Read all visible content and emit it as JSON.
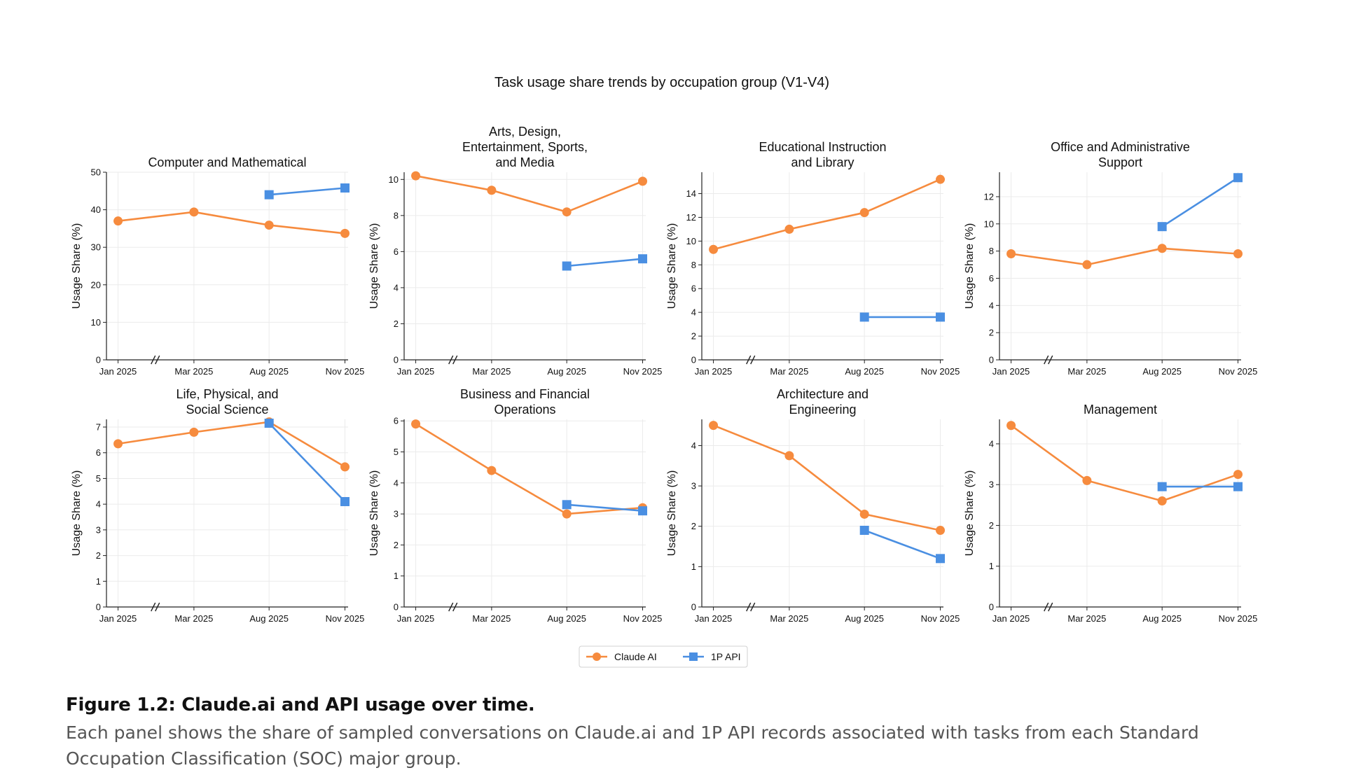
{
  "figure": {
    "suptitle": "Task usage share trends by occupation group (V1-V4)"
  },
  "legend": {
    "location": "bottom-center",
    "entries": [
      {
        "name": "Claude AI",
        "color": "#F68B3E",
        "marker": "circle"
      },
      {
        "name": "1P API",
        "color": "#4A8FE2",
        "marker": "square"
      }
    ]
  },
  "caption": {
    "title": "Figure 1.2: Claude.ai and API usage over time.",
    "body": "Each panel shows the share of sampled conversations on Claude.ai and 1P API records associated with tasks from each Standard Occupation Classification (SOC) major group."
  },
  "chart_data": [
    {
      "type": "line",
      "title": "Computer and Mathematical",
      "ylabel": "Usage Share (%)",
      "categories": [
        "Jan 2025",
        "Mar 2025",
        "Aug 2025",
        "Nov 2025"
      ],
      "axis_break": "between Mar 2025 and Aug 2025",
      "ylim": [
        0,
        50
      ],
      "yticks": [
        0,
        10,
        20,
        30,
        40,
        50
      ],
      "grid": true,
      "series": [
        {
          "name": "Claude AI",
          "values": [
            37.0,
            39.4,
            35.9,
            33.7
          ]
        },
        {
          "name": "1P API",
          "values": [
            null,
            null,
            44.0,
            45.8
          ]
        }
      ]
    },
    {
      "type": "line",
      "title": "Arts, Design,\nEntertainment, Sports,\nand Media",
      "ylabel": "Usage Share (%)",
      "categories": [
        "Jan 2025",
        "Mar 2025",
        "Aug 2025",
        "Nov 2025"
      ],
      "axis_break": "between Mar 2025 and Aug 2025",
      "ylim": [
        0,
        10.4
      ],
      "yticks": [
        0,
        2,
        4,
        6,
        8,
        10
      ],
      "grid": true,
      "series": [
        {
          "name": "Claude AI",
          "values": [
            10.2,
            9.4,
            8.2,
            9.9
          ]
        },
        {
          "name": "1P API",
          "values": [
            null,
            null,
            5.2,
            5.6
          ]
        }
      ]
    },
    {
      "type": "line",
      "title": "Educational Instruction\nand Library",
      "ylabel": "Usage Share (%)",
      "categories": [
        "Jan 2025",
        "Mar 2025",
        "Aug 2025",
        "Nov 2025"
      ],
      "axis_break": "between Mar 2025 and Aug 2025",
      "ylim": [
        0,
        15.8
      ],
      "yticks": [
        0,
        2,
        4,
        6,
        8,
        10,
        12,
        14
      ],
      "grid": true,
      "series": [
        {
          "name": "Claude AI",
          "values": [
            9.3,
            11.0,
            12.4,
            15.2
          ]
        },
        {
          "name": "1P API",
          "values": [
            null,
            null,
            3.6,
            3.6
          ]
        }
      ]
    },
    {
      "type": "line",
      "title": "Office and Administrative\nSupport",
      "ylabel": "Usage Share (%)",
      "categories": [
        "Jan 2025",
        "Mar 2025",
        "Aug 2025",
        "Nov 2025"
      ],
      "axis_break": "between Mar 2025 and Aug 2025",
      "ylim": [
        0,
        13.8
      ],
      "yticks": [
        0,
        2,
        4,
        6,
        8,
        10,
        12
      ],
      "grid": true,
      "series": [
        {
          "name": "Claude AI",
          "values": [
            7.8,
            7.0,
            8.2,
            7.8
          ]
        },
        {
          "name": "1P API",
          "values": [
            null,
            null,
            9.8,
            13.4
          ]
        }
      ]
    },
    {
      "type": "line",
      "title": "Life, Physical, and\nSocial Science",
      "ylabel": "Usage Share (%)",
      "categories": [
        "Jan 2025",
        "Mar 2025",
        "Aug 2025",
        "Nov 2025"
      ],
      "axis_break": "between Mar 2025 and Aug 2025",
      "ylim": [
        0,
        7.3
      ],
      "yticks": [
        0,
        1,
        2,
        3,
        4,
        5,
        6,
        7
      ],
      "grid": true,
      "series": [
        {
          "name": "Claude AI",
          "values": [
            6.35,
            6.8,
            7.2,
            5.45
          ]
        },
        {
          "name": "1P API",
          "values": [
            null,
            null,
            7.15,
            4.1
          ]
        }
      ]
    },
    {
      "type": "line",
      "title": "Business and Financial\nOperations",
      "ylabel": "Usage Share (%)",
      "categories": [
        "Jan 2025",
        "Mar 2025",
        "Aug 2025",
        "Nov 2025"
      ],
      "axis_break": "between Mar 2025 and Aug 2025",
      "ylim": [
        0,
        6.05
      ],
      "yticks": [
        0,
        1,
        2,
        3,
        4,
        5,
        6
      ],
      "grid": true,
      "series": [
        {
          "name": "Claude AI",
          "values": [
            5.9,
            4.4,
            3.0,
            3.2
          ]
        },
        {
          "name": "1P API",
          "values": [
            null,
            null,
            3.3,
            3.1
          ]
        }
      ]
    },
    {
      "type": "line",
      "title": "Architecture and\nEngineering",
      "ylabel": "Usage Share (%)",
      "categories": [
        "Jan 2025",
        "Mar 2025",
        "Aug 2025",
        "Nov 2025"
      ],
      "axis_break": "between Mar 2025 and Aug 2025",
      "ylim": [
        0,
        4.65
      ],
      "yticks": [
        0,
        1,
        2,
        3,
        4
      ],
      "grid": true,
      "series": [
        {
          "name": "Claude AI",
          "values": [
            4.5,
            3.75,
            2.3,
            1.9
          ]
        },
        {
          "name": "1P API",
          "values": [
            null,
            null,
            1.9,
            1.2
          ]
        }
      ]
    },
    {
      "type": "line",
      "title": "Management",
      "ylabel": "Usage Share (%)",
      "categories": [
        "Jan 2025",
        "Mar 2025",
        "Aug 2025",
        "Nov 2025"
      ],
      "axis_break": "between Mar 2025 and Aug 2025",
      "ylim": [
        0,
        4.6
      ],
      "yticks": [
        0,
        1,
        2,
        3,
        4
      ],
      "grid": true,
      "series": [
        {
          "name": "Claude AI",
          "values": [
            4.45,
            3.1,
            2.6,
            3.25
          ]
        },
        {
          "name": "1P API",
          "values": [
            null,
            null,
            2.95,
            2.95
          ]
        }
      ]
    }
  ]
}
